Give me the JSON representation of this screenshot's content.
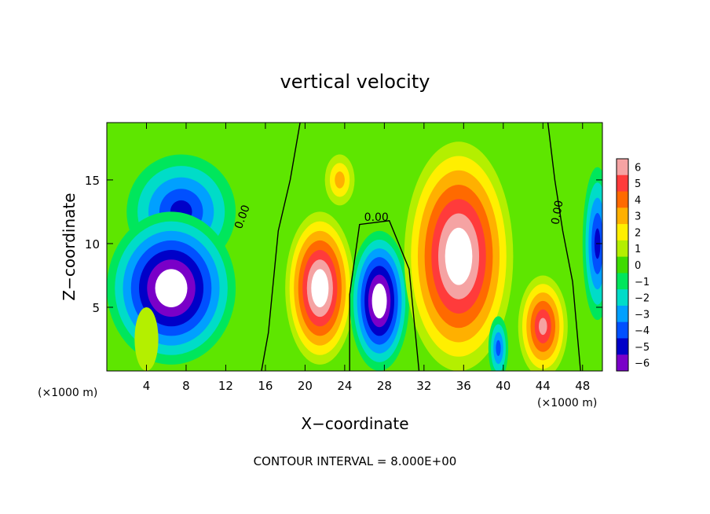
{
  "chart_data": {
    "type": "heatmap",
    "title": "vertical velocity",
    "xlabel": "X−coordinate",
    "ylabel": "Z−coordinate",
    "x_unit_left": "(×1000 m)",
    "x_unit_right": "(×1000 m)",
    "footer": "CONTOUR INTERVAL = 8.000E+00",
    "xlim": [
      0,
      50
    ],
    "ylim": [
      0,
      19.5
    ],
    "x_ticks": [
      4,
      8,
      12,
      16,
      20,
      24,
      28,
      32,
      36,
      40,
      44,
      48
    ],
    "x_tick_labels": [
      "4",
      "8",
      "12",
      "16",
      "20",
      "24",
      "28",
      "32",
      "36",
      "40",
      "44",
      "48"
    ],
    "y_ticks": [
      5,
      10,
      15
    ],
    "y_tick_labels": [
      "5",
      "10",
      "15"
    ],
    "colorbar": {
      "range": [
        -6,
        6
      ],
      "tick_labels": [
        "6",
        "5",
        "4",
        "3",
        "2",
        "1",
        "0",
        "−1",
        "−2",
        "−3",
        "−4",
        "−5",
        "−6"
      ],
      "colors": [
        "#f5a3a3",
        "#ff3b3b",
        "#ff6a00",
        "#ffb000",
        "#ffef00",
        "#b4ef00",
        "#3fdc00",
        "#00e65c",
        "#00dcc8",
        "#00a0ff",
        "#0050ff",
        "#0000c8",
        "#7a00c8"
      ]
    },
    "contour_labels": [
      {
        "text": "0.00",
        "x": 14.0,
        "z": 12.0,
        "angle": -70
      },
      {
        "text": "0.00",
        "x": 27.2,
        "z": 11.8,
        "angle": 0
      },
      {
        "text": "0.00",
        "x": 45.8,
        "z": 12.4,
        "angle": -80
      }
    ],
    "cells": [
      {
        "x": 21.5,
        "z": 6.5,
        "rx": 3.5,
        "rz": 6.0,
        "v": 8
      },
      {
        "x": 27.5,
        "z": 5.5,
        "rx": 3.0,
        "rz": 5.5,
        "v": -8
      },
      {
        "x": 35.5,
        "z": 9.0,
        "rx": 5.5,
        "rz": 9.0,
        "v": 8
      },
      {
        "x": 44.0,
        "z": 3.5,
        "rx": 2.5,
        "rz": 4.0,
        "v": 6
      },
      {
        "x": 23.5,
        "z": 15.0,
        "rx": 1.5,
        "rz": 2.0,
        "v": 3
      },
      {
        "x": 7.5,
        "z": 12.5,
        "rx": 5.5,
        "rz": 4.5,
        "v": -5
      },
      {
        "x": 6.5,
        "z": 6.5,
        "rx": 6.5,
        "rz": 6.0,
        "v": -8
      },
      {
        "x": 4.0,
        "z": 2.5,
        "rx": 1.2,
        "rz": 2.5,
        "v": 1
      },
      {
        "x": 39.5,
        "z": 1.8,
        "rx": 1.0,
        "rz": 2.5,
        "v": -4
      },
      {
        "x": 49.5,
        "z": 10.0,
        "rx": 1.5,
        "rz": 6.0,
        "v": -5
      }
    ]
  }
}
